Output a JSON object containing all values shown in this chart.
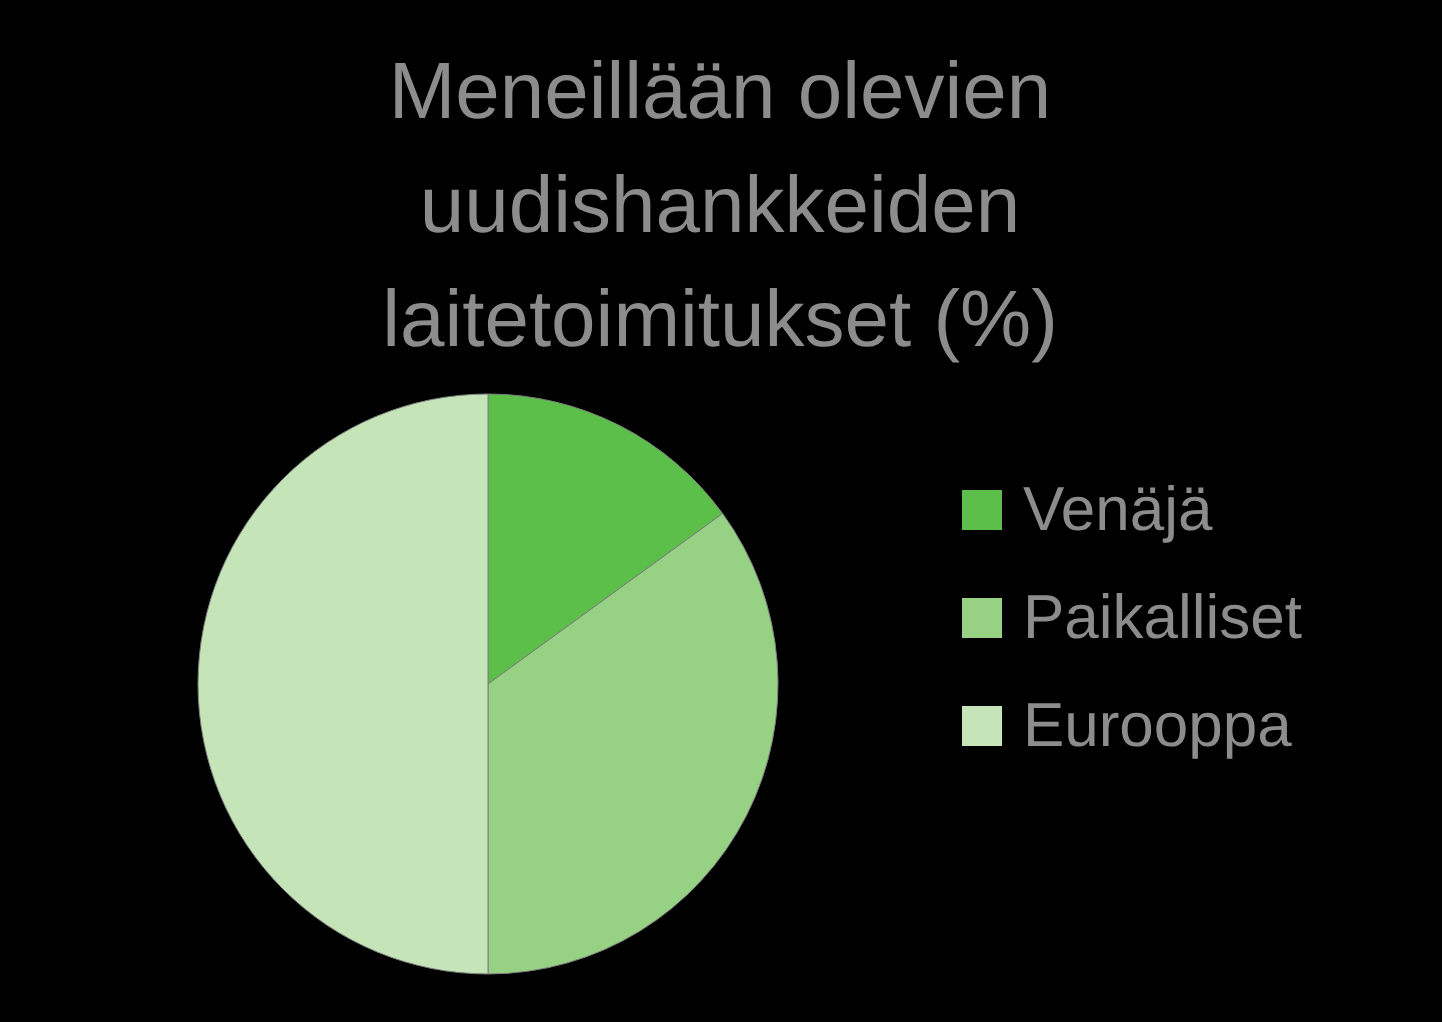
{
  "chart_data": {
    "type": "pie",
    "title": "Meneillään olevien uudishankkeiden laitetoimitukset (%)",
    "categories": [
      "Venäjä",
      "Paikalliset",
      "Eurooppa"
    ],
    "values": [
      15,
      35,
      50
    ],
    "colors": [
      "#5cbf4a",
      "#96d184",
      "#c5e5b8"
    ],
    "legend": "right"
  }
}
